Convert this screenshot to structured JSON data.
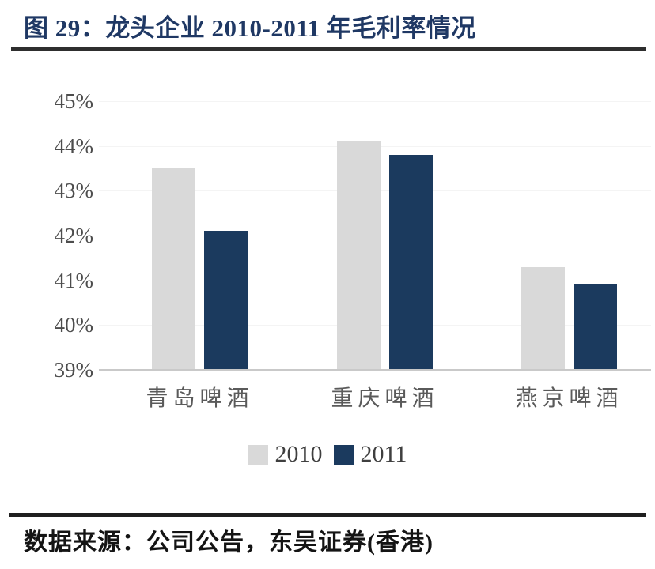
{
  "figure": {
    "title": "图 29：龙头企业 2010-2011 年毛利率情况",
    "source": "数据来源：公司公告，东吴证券(香港)"
  },
  "chart_data": {
    "type": "bar",
    "categories": [
      "青岛啤酒",
      "重庆啤酒",
      "燕京啤酒"
    ],
    "series": [
      {
        "name": "2010",
        "color": "#d9d9d9",
        "values": [
          43.5,
          44.1,
          41.3
        ]
      },
      {
        "name": "2011",
        "color": "#1b3a5e",
        "values": [
          42.1,
          43.8,
          40.9
        ]
      }
    ],
    "title": "龙头企业 2010-2011 年毛利率情况",
    "xlabel": "",
    "ylabel": "",
    "ylim": [
      39,
      45
    ],
    "y_ticks": [
      "45%",
      "44%",
      "43%",
      "42%",
      "41%",
      "40%",
      "39%"
    ],
    "grid": false,
    "legend_position": "bottom"
  },
  "colors": {
    "title_text": "#1f3864",
    "axis_text": "#4d4d4d",
    "category_text": "#5a5a5a",
    "baseline": "#c9c9c9",
    "rule": "#2e2e2e",
    "bar_2010": "#d9d9d9",
    "bar_2011": "#1b3a5e"
  }
}
